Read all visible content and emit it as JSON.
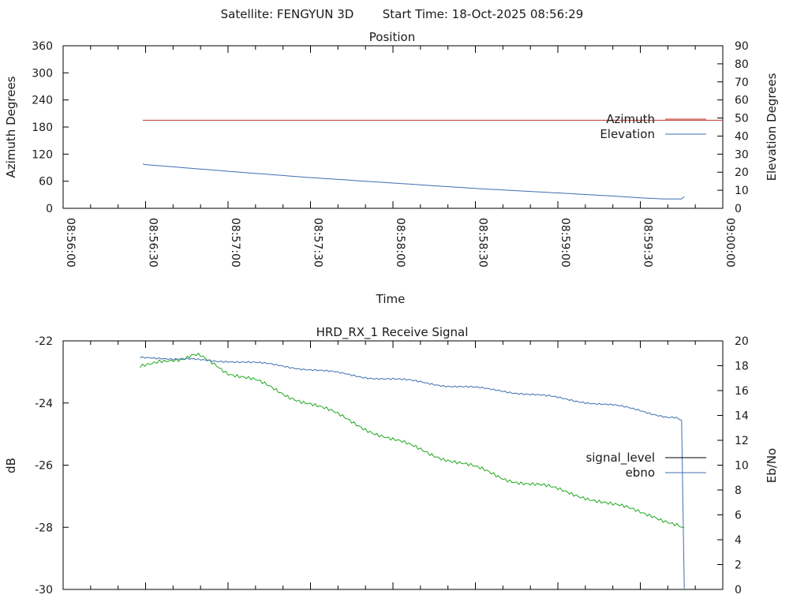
{
  "header": {
    "satellite": "Satellite: FENGYUN 3D",
    "start_time": "Start Time: 18-Oct-2025 08:56:29"
  },
  "colors": {
    "azimuth": "#c0392b",
    "elevation": "#3f6fb0",
    "signal_level": "#000000",
    "ebno": "#3f6fb0",
    "signal_trace": "#1fa81f"
  },
  "chart_data": [
    {
      "type": "line",
      "title": "Position",
      "xlabel": "Time",
      "ylabel": "Azimuth Degrees",
      "y2label": "Elevation Degrees",
      "xlim_seconds": [
        0,
        240
      ],
      "x_ticks": [
        "08:56:00",
        "08:56:30",
        "08:57:00",
        "08:57:30",
        "08:58:00",
        "08:58:30",
        "08:59:00",
        "08:59:30",
        "09:00:00"
      ],
      "ylim": [
        0,
        360
      ],
      "y_ticks": [
        "0",
        "60",
        "120",
        "180",
        "240",
        "300",
        "360"
      ],
      "y2lim": [
        0,
        90
      ],
      "y2_ticks": [
        "0",
        "10",
        "20",
        "30",
        "40",
        "50",
        "60",
        "70",
        "80",
        "90"
      ],
      "legend_position": "right",
      "series": [
        {
          "name": "Azimuth",
          "axis": "left",
          "x_seconds": [
            29,
            60,
            90,
            120,
            150,
            180,
            210,
            240
          ],
          "values": [
            195,
            195,
            195,
            195,
            195,
            195,
            195,
            195
          ]
        },
        {
          "name": "Elevation",
          "axis": "right",
          "x_seconds": [
            29,
            30,
            60,
            90,
            120,
            150,
            180,
            200,
            210,
            218,
            225,
            226
          ],
          "values": [
            24.5,
            24.2,
            20.5,
            17.0,
            14.0,
            11.0,
            8.5,
            6.8,
            5.8,
            5.2,
            5.2,
            6.5
          ]
        }
      ]
    },
    {
      "type": "line",
      "title": "HRD_RX_1 Receive Signal",
      "ylabel": "dB",
      "y2label": "Eb/No",
      "xlim_seconds": [
        0,
        240
      ],
      "ylim": [
        -30,
        -22
      ],
      "y_ticks": [
        "-30",
        "-28",
        "-26",
        "-24",
        "-22"
      ],
      "y2lim": [
        0,
        20
      ],
      "y2_ticks": [
        "0",
        "2",
        "4",
        "6",
        "8",
        "10",
        "12",
        "14",
        "16",
        "18",
        "20"
      ],
      "legend_position": "right",
      "series": [
        {
          "name": "signal_level",
          "axis": "left",
          "x_seconds": [
            28,
            35,
            42,
            50,
            55,
            60,
            70,
            80,
            90,
            100,
            110,
            120,
            130,
            140,
            150,
            160,
            170,
            180,
            190,
            200,
            210,
            215,
            220,
            225,
            226
          ],
          "values": [
            -22.8,
            -22.6,
            -22.55,
            -22.5,
            -22.7,
            -23.0,
            -23.3,
            -23.7,
            -24.0,
            -24.4,
            -24.8,
            -25.2,
            -25.5,
            -25.8,
            -26.1,
            -26.4,
            -26.6,
            -26.8,
            -27.0,
            -27.3,
            -27.5,
            -27.6,
            -27.8,
            -28.0,
            -28.0
          ]
        },
        {
          "name": "ebno",
          "axis": "right",
          "x_seconds": [
            28,
            40,
            60,
            70,
            80,
            90,
            100,
            110,
            120,
            130,
            140,
            150,
            160,
            170,
            180,
            190,
            200,
            210,
            220,
            224,
            225,
            226
          ],
          "values": [
            18.7,
            18.5,
            18.4,
            18.2,
            18.0,
            17.7,
            17.4,
            17.1,
            16.9,
            16.7,
            16.4,
            16.2,
            16.0,
            15.7,
            15.4,
            15.1,
            14.8,
            14.4,
            13.9,
            13.7,
            13.6,
            0
          ]
        }
      ]
    }
  ]
}
